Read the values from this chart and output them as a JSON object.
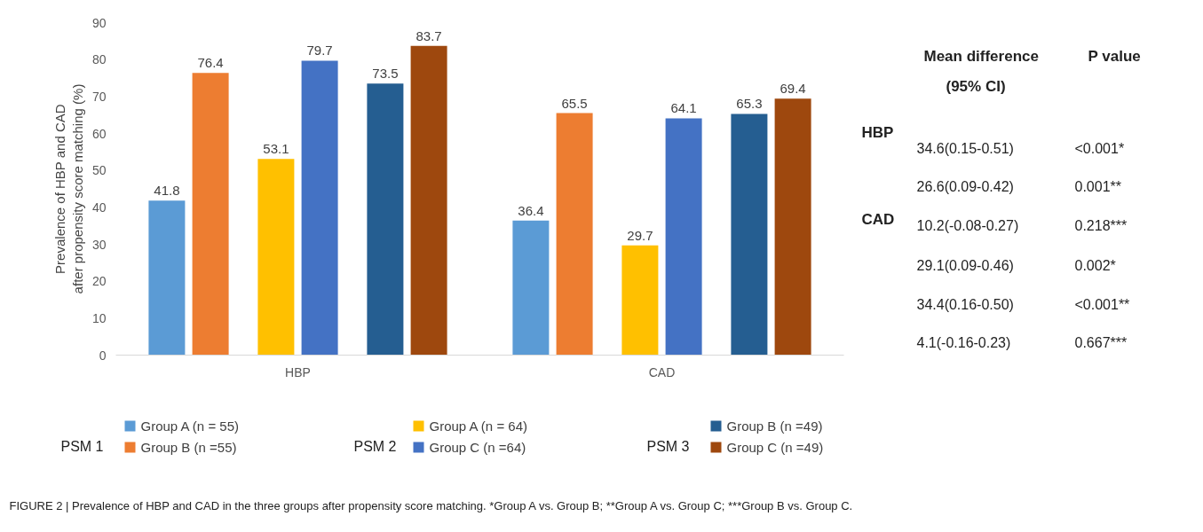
{
  "chart_data": {
    "type": "bar",
    "ylabel": "Prevalence of HBP and CAD\nafter propensity score matching (%)",
    "categories": [
      "HBP",
      "CAD"
    ],
    "series": [
      {
        "name": "Group A (n = 55)",
        "color": "#5b9bd5",
        "values": [
          41.8,
          36.4
        ]
      },
      {
        "name": "Group B (n =55)",
        "color": "#ed7d31",
        "values": [
          76.4,
          65.5
        ]
      },
      {
        "name": "Group A (n = 64)",
        "color": "#ffc000",
        "values": [
          53.1,
          29.7
        ]
      },
      {
        "name": "Group C (n =64)",
        "color": "#4472c4",
        "values": [
          79.7,
          64.1
        ]
      },
      {
        "name": "Group B (n =49)",
        "color": "#255e91",
        "values": [
          73.5,
          65.3
        ]
      },
      {
        "name": "Group C (n =49)",
        "color": "#9e480e",
        "values": [
          83.7,
          69.4
        ]
      }
    ],
    "ylim": [
      0,
      90
    ],
    "yticks": [
      0,
      10,
      20,
      30,
      40,
      50,
      60,
      70,
      80,
      90
    ],
    "grid": false,
    "legend": "bottom",
    "data_labels": true,
    "annotations": [
      "Mean difference",
      "(95% CI)",
      "P value",
      "HBP",
      "CAD",
      "34.6(0.15-0.51)",
      "26.6(0.09-0.42)",
      "10.2(-0.08-0.27)",
      "29.1(0.09-0.46)",
      "34.4(0.16-0.50)",
      "4.1(-0.16-0.23)",
      "<0.001*",
      "0.001**",
      "0.218***",
      "0.002*",
      "<0.001**",
      "0.667***",
      "PSM 1",
      "PSM 2",
      "PSM 3",
      "FIGURE 2 | Prevalence of HBP and CAD in the three groups after propensity score matching. *Group A vs. Group B; **Group A vs. Group C; ***Group B vs. Group C."
    ]
  }
}
